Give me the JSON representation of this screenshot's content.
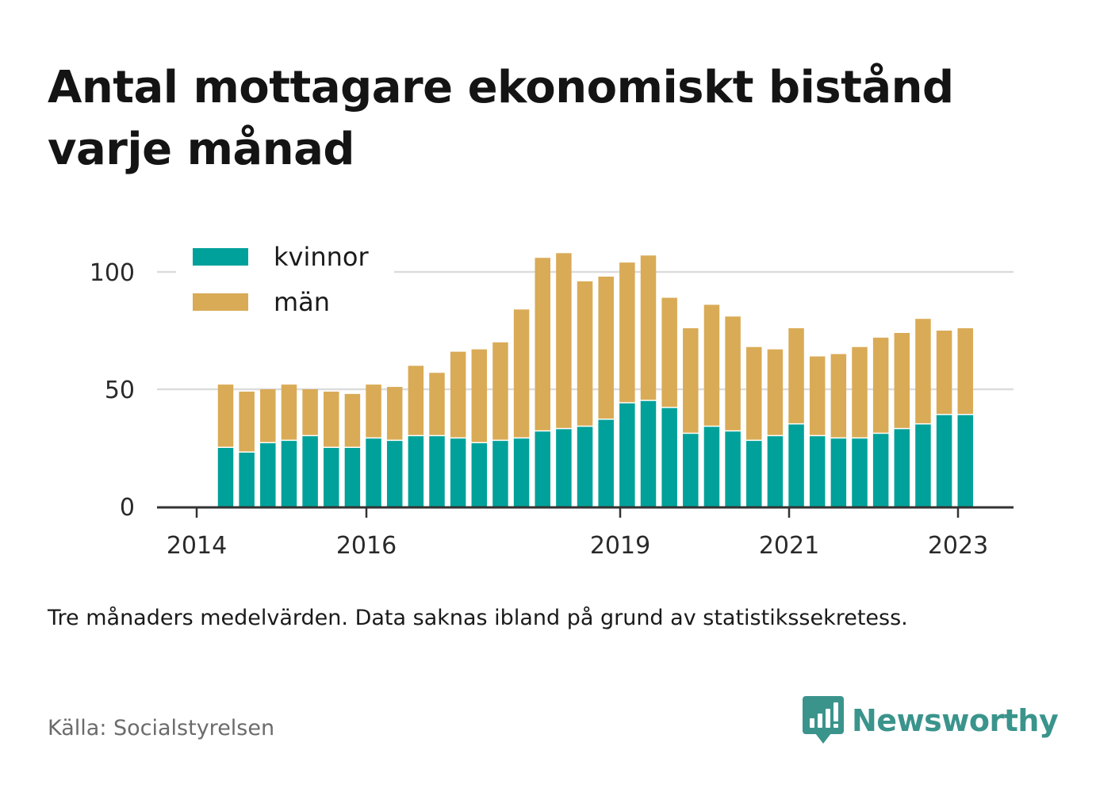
{
  "chart_data": {
    "type": "bar",
    "stacked": true,
    "title": "Antal mottagare ekonomiskt bistånd varje månad",
    "subtitle": "",
    "xlabel": "",
    "ylabel": "",
    "ylim": [
      0,
      112
    ],
    "yticks": [
      0,
      50,
      100
    ],
    "xtick_labels": [
      "2014",
      "2016",
      "2019",
      "2021",
      "2023"
    ],
    "grid": true,
    "legend_position": "top-left",
    "colors": {
      "kvinnor": "#00a19a",
      "man": "#d9ab56"
    },
    "series": [
      {
        "name": "kvinnor",
        "color": "#00a19a",
        "values": [
          25,
          23,
          27,
          28,
          30,
          25,
          25,
          29,
          28,
          30,
          30,
          29,
          27,
          28,
          29,
          32,
          33,
          34,
          37,
          44,
          45,
          42,
          31,
          34,
          32,
          28,
          30,
          35,
          30,
          29,
          29,
          31,
          33,
          35,
          39,
          39
        ]
      },
      {
        "name": "män",
        "color": "#d9ab56",
        "values": [
          27,
          26,
          23,
          24,
          20,
          24,
          23,
          23,
          23,
          30,
          27,
          37,
          40,
          42,
          55,
          74,
          75,
          62,
          61,
          60,
          62,
          47,
          45,
          52,
          49,
          40,
          37,
          41,
          34,
          36,
          39,
          41,
          41,
          45,
          36,
          37
        ]
      }
    ]
  },
  "note": "Tre månaders medelvärden. Data saknas ibland på grund av statistikssekretess.",
  "source": "Källa: Socialstyrelsen",
  "brand": {
    "name": "Newsworthy",
    "icon": "newsworthy-logo-icon",
    "color": "#3a948c"
  }
}
